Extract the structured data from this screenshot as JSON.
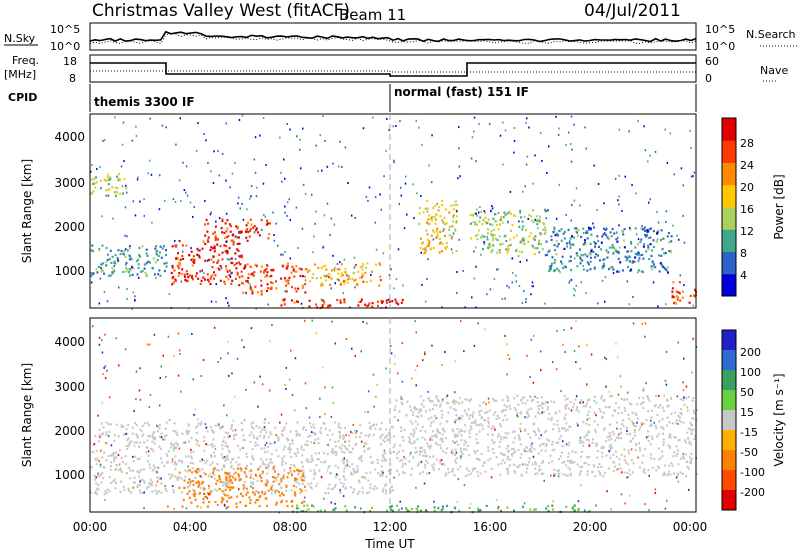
{
  "header": {
    "station": "Christmas Valley West (fitACF)",
    "beam": "Beam 11",
    "date": "04/Jul/2011"
  },
  "strips": {
    "nsky_label": "N.Sky",
    "nsky_ticks": [
      "10^5",
      "10^0"
    ],
    "nsearch_label": "N.Search",
    "nsearch_ticks": [
      "10^5",
      "10^0"
    ],
    "freq_label_1": "Freq.",
    "freq_label_2": "[MHz]",
    "freq_ticks": [
      "18",
      "8"
    ],
    "nave_label": "Nave",
    "nave_ticks": [
      "60",
      "0"
    ],
    "cpid_label": "CPID",
    "cpid_entries": [
      "themis 3300 IF",
      "normal (fast) 151 IF"
    ]
  },
  "axes": {
    "x_ticks": [
      "00:00",
      "04:00",
      "08:00",
      "12:00",
      "16:00",
      "20:00",
      "00:00"
    ],
    "x_label": "Time UT",
    "y_label": "Slant Range [km]",
    "y_ticks": [
      "1000",
      "2000",
      "3000",
      "4000"
    ]
  },
  "colorbars": {
    "power": {
      "label": "Power [dB]",
      "ticks": [
        "4",
        "8",
        "12",
        "16",
        "20",
        "24",
        "28"
      ],
      "colors": [
        "#0000dd",
        "#2d62c8",
        "#3fa88a",
        "#a8d25a",
        "#ffc800",
        "#ff8c00",
        "#ff3a00",
        "#e00000"
      ]
    },
    "velocity": {
      "label": "Velocity [m s⁻¹]",
      "ticks": [
        "200",
        "100",
        "50",
        "15",
        "-15",
        "-50",
        "-100",
        "-200"
      ],
      "colors": [
        "#2020c8",
        "#2f6ad0",
        "#3aa060",
        "#6ad040",
        "#c8c8c8",
        "#ffb000",
        "#ff8000",
        "#ff4a00",
        "#e00000"
      ]
    }
  },
  "chart_data": [
    {
      "type": "heatmap",
      "name": "power",
      "x_range": [
        "00:00",
        "24:00"
      ],
      "ylim": [
        180,
        4500
      ],
      "value_range": [
        0,
        30
      ],
      "colorbar_ticks": [
        4,
        8,
        12,
        16,
        20,
        24,
        28
      ],
      "regions": [
        {
          "t0": 3.2,
          "t1": 6.0,
          "r0": 700,
          "r1": 1700,
          "level": 28
        },
        {
          "t0": 4.5,
          "t1": 7.2,
          "r0": 1700,
          "r1": 2200,
          "level": 28
        },
        {
          "t0": 6.0,
          "t1": 8.5,
          "r0": 500,
          "r1": 1200,
          "level": 26
        },
        {
          "t0": 8.5,
          "t1": 11.5,
          "r0": 700,
          "r1": 1200,
          "level": 20
        },
        {
          "t0": 7.5,
          "t1": 12.5,
          "r0": 200,
          "r1": 400,
          "level": 28
        },
        {
          "t0": 0.0,
          "t1": 3.0,
          "r0": 900,
          "r1": 1600,
          "level": 9
        },
        {
          "t0": 0.0,
          "t1": 1.5,
          "r0": 2700,
          "r1": 3200,
          "level": 14
        },
        {
          "t0": 13.0,
          "t1": 14.5,
          "r0": 1400,
          "r1": 2600,
          "level": 18
        },
        {
          "t0": 15.0,
          "t1": 18.0,
          "r0": 1400,
          "r1": 2400,
          "level": 14
        },
        {
          "t0": 18.0,
          "t1": 23.0,
          "r0": 1000,
          "r1": 2000,
          "level": 8
        },
        {
          "t0": 23.0,
          "t1": 24.0,
          "r0": 300,
          "r1": 800,
          "level": 26
        }
      ]
    },
    {
      "type": "heatmap",
      "name": "velocity",
      "x_range": [
        "00:00",
        "24:00"
      ],
      "ylim": [
        180,
        4500
      ],
      "value_range": [
        -200,
        200
      ],
      "colorbar_ticks": [
        200,
        100,
        50,
        15,
        -15,
        -50,
        -100,
        -200
      ],
      "regions": [
        {
          "t0": 0.0,
          "t1": 12.0,
          "r0": 600,
          "r1": 2200,
          "value": 0
        },
        {
          "t0": 3.5,
          "t1": 8.5,
          "r0": 300,
          "r1": 1200,
          "value": -50
        },
        {
          "t0": 12.0,
          "t1": 24.0,
          "r0": 1000,
          "r1": 2800,
          "value": 0
        },
        {
          "t0": 8.0,
          "t1": 20.0,
          "r0": 200,
          "r1": 350,
          "value": 30
        }
      ]
    }
  ]
}
